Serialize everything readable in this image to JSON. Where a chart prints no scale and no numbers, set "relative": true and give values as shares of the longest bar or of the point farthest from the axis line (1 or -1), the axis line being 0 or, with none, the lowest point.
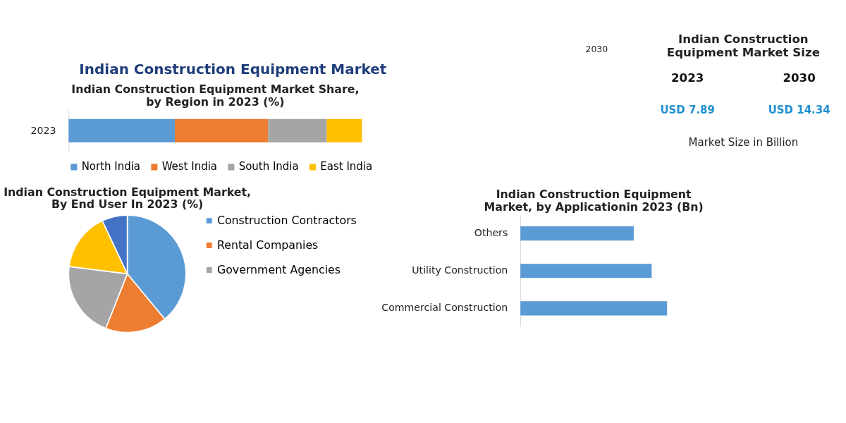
{
  "chart_data": [
    {
      "type": "other",
      "title": "Indian Construction Equipment Market",
      "annotations": [
        "2030"
      ]
    },
    {
      "type": "bar",
      "orientation": "horizontal",
      "stacked": true,
      "relative": true,
      "title": "Indian Construction Equipment Market Share, by Region in 2023 (%)",
      "categories": [
        "2023"
      ],
      "legend": "bottom",
      "series": [
        {
          "name": "North India",
          "color": "#5b9bd5",
          "values": [
            0.362
          ]
        },
        {
          "name": "West India",
          "color": "#ed7d31",
          "values": [
            0.318
          ]
        },
        {
          "name": "South India",
          "color": "#a5a5a5",
          "values": [
            0.2
          ]
        },
        {
          "name": "East India",
          "color": "#ffc000",
          "values": [
            0.12
          ]
        }
      ]
    },
    {
      "type": "other",
      "title": "Indian Construction Equipment Market Size",
      "annotations": [
        "2023",
        "2030",
        "USD 7.89",
        "USD 14.34",
        "Market Size in Billion"
      ]
    },
    {
      "type": "pie",
      "title": "Indian Construction Equipment Market, By End User In 2023 (%)",
      "legend": "right",
      "categories": [
        "Construction Contractors",
        "Rental Companies",
        "Government Agencies",
        null,
        null
      ],
      "values": [
        39,
        17,
        21,
        16,
        7
      ],
      "colors": [
        "#5b9bd5",
        "#ed7d31",
        "#a5a5a5",
        "#ffc000",
        "#4472c4"
      ]
    },
    {
      "type": "bar",
      "orientation": "horizontal",
      "relative": true,
      "title": "Indian Construction Equipment Market, by Applicationin 2023 (Bn)",
      "categories": [
        "Others",
        "Utility Construction",
        "Commercial Construction"
      ],
      "values": [
        0.773,
        0.895,
        1
      ],
      "color": "#5b9bd5"
    }
  ]
}
